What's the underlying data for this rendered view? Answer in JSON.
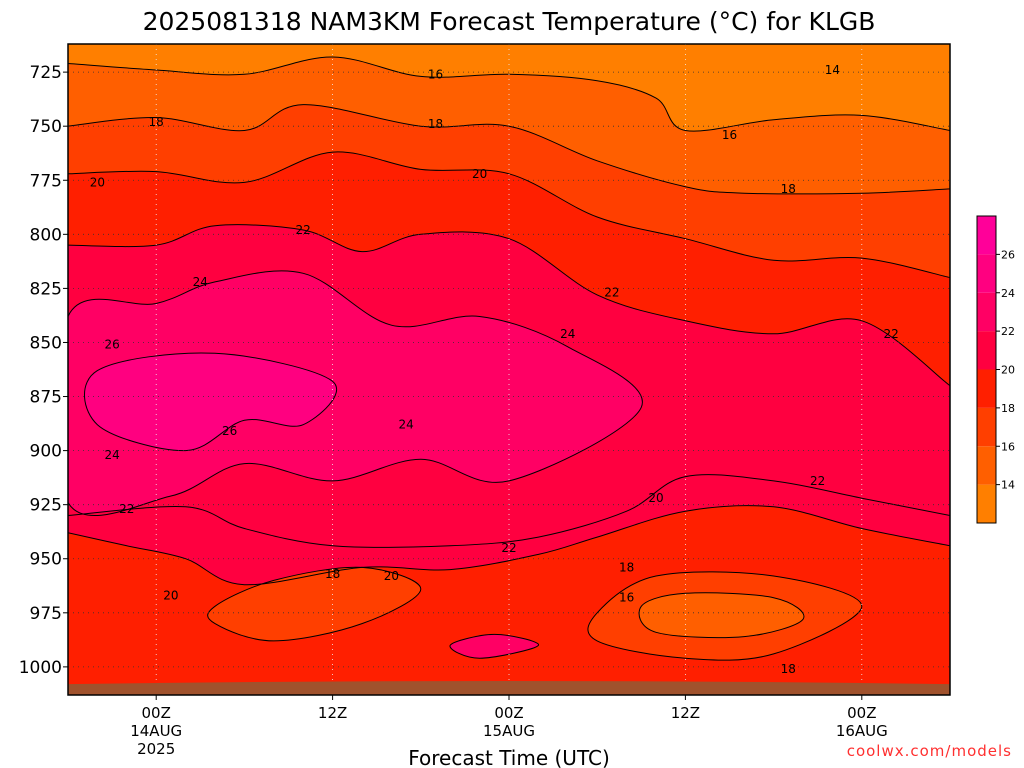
{
  "chart_data": {
    "type": "contour",
    "title": "2025081318 NAM3KM Forecast Temperature (°C) for KLGB",
    "xlabel": "Forecast Time (UTC)",
    "ylabel": "",
    "credit": "coolwx.com/models",
    "y_axis": {
      "unit": "hPa",
      "inverted": true,
      "range": [
        712,
        1013
      ],
      "ticks": [
        "725",
        "750",
        "775",
        "800",
        "825",
        "850",
        "875",
        "900",
        "925",
        "950",
        "975",
        "1000"
      ]
    },
    "x_axis": {
      "range_hours": [
        -6,
        54
      ],
      "ticks": [
        {
          "hour": 0,
          "lines": [
            "00Z",
            "14AUG",
            "2025"
          ]
        },
        {
          "hour": 12,
          "lines": [
            "12Z"
          ]
        },
        {
          "hour": 24,
          "lines": [
            "00Z",
            "15AUG"
          ]
        },
        {
          "hour": 36,
          "lines": [
            "12Z"
          ]
        },
        {
          "hour": 48,
          "lines": [
            "00Z",
            "16AUG"
          ]
        }
      ]
    },
    "grid": true,
    "colorbar": {
      "placement": "right",
      "labels": [
        "14",
        "16",
        "18",
        "20",
        "22",
        "24",
        "26"
      ],
      "colors": [
        "#ff7f00",
        "#ff5f00",
        "#ff3f00",
        "#ff1f00",
        "#ff0040",
        "#ff0064",
        "#ff0080",
        "#ff0099"
      ]
    },
    "fill_colors": {
      "t14": "#ff7f00",
      "t16": "#ff5f00",
      "t18": "#ff3f00",
      "t20": "#ff1f00",
      "t22": "#ff0040",
      "t24": "#ff0064",
      "t26": "#ff0080",
      "ground": "#a0522d"
    },
    "series": [
      {
        "level": 16,
        "points": [
          [
            -6,
            721
          ],
          [
            0,
            724
          ],
          [
            6,
            726
          ],
          [
            12,
            718
          ],
          [
            18,
            727
          ],
          [
            24,
            726
          ],
          [
            30,
            729
          ],
          [
            34,
            737
          ],
          [
            36,
            752
          ],
          [
            42,
            747
          ],
          [
            48,
            745
          ],
          [
            54,
            752
          ]
        ]
      },
      {
        "level": 18,
        "points": [
          [
            -6,
            750
          ],
          [
            0,
            746
          ],
          [
            6,
            752
          ],
          [
            10,
            740
          ],
          [
            18,
            750
          ],
          [
            24,
            750
          ],
          [
            30,
            766
          ],
          [
            36,
            778
          ],
          [
            40,
            781
          ],
          [
            48,
            781
          ],
          [
            54,
            779
          ]
        ]
      },
      {
        "level": 20,
        "points": [
          [
            -6,
            772
          ],
          [
            0,
            771
          ],
          [
            6,
            776
          ],
          [
            12,
            762
          ],
          [
            18,
            770
          ],
          [
            24,
            772
          ],
          [
            30,
            792
          ],
          [
            36,
            802
          ],
          [
            42,
            812
          ],
          [
            48,
            811
          ],
          [
            54,
            820
          ]
        ]
      },
      {
        "level": 22,
        "points": [
          [
            -6,
            805
          ],
          [
            0,
            805
          ],
          [
            4,
            796
          ],
          [
            10,
            798
          ],
          [
            14,
            808
          ],
          [
            18,
            800
          ],
          [
            24,
            802
          ],
          [
            30,
            828
          ],
          [
            36,
            840
          ],
          [
            42,
            846
          ],
          [
            48,
            840
          ],
          [
            54,
            870
          ]
        ]
      },
      {
        "level": 24,
        "points": [
          [
            -6,
            838
          ],
          [
            0,
            832
          ],
          [
            4,
            822
          ],
          [
            10,
            818
          ],
          [
            16,
            842
          ],
          [
            22,
            838
          ],
          [
            28,
            852
          ],
          [
            33,
            880
          ],
          [
            24,
            914
          ],
          [
            18,
            904
          ],
          [
            12,
            914
          ],
          [
            6,
            906
          ],
          [
            1,
            921
          ],
          [
            -6,
            924
          ]
        ]
      },
      {
        "level": 26,
        "points": [
          [
            -4,
            863
          ],
          [
            4,
            855
          ],
          [
            12,
            868
          ],
          [
            10,
            888
          ],
          [
            6,
            886
          ],
          [
            2,
            900
          ],
          [
            -4,
            888
          ]
        ]
      },
      {
        "level": 22,
        "points": [
          [
            -6,
            930
          ],
          [
            2,
            926
          ],
          [
            6,
            936
          ],
          [
            12,
            944
          ],
          [
            20,
            944
          ],
          [
            26,
            940
          ],
          [
            32,
            928
          ],
          [
            36,
            912
          ],
          [
            42,
            914
          ],
          [
            48,
            922
          ],
          [
            54,
            930
          ]
        ]
      },
      {
        "level": 20,
        "points": [
          [
            -6,
            938
          ],
          [
            -2,
            944
          ],
          [
            2,
            950
          ],
          [
            6,
            962
          ],
          [
            14,
            954
          ],
          [
            20,
            955
          ],
          [
            26,
            948
          ],
          [
            30,
            940
          ],
          [
            36,
            928
          ],
          [
            42,
            926
          ],
          [
            48,
            936
          ],
          [
            54,
            944
          ]
        ]
      },
      {
        "level": 18,
        "points": [
          [
            4,
            972
          ],
          [
            8,
            960
          ],
          [
            14,
            954
          ],
          [
            18,
            964
          ],
          [
            14,
            980
          ],
          [
            8,
            988
          ],
          [
            4,
            980
          ]
        ]
      },
      {
        "level": 18,
        "points": [
          [
            30,
            975
          ],
          [
            34,
            958
          ],
          [
            42,
            958
          ],
          [
            48,
            972
          ],
          [
            42,
            994
          ],
          [
            36,
            996
          ],
          [
            30,
            988
          ]
        ]
      },
      {
        "level": 16,
        "points": [
          [
            33,
            972
          ],
          [
            36,
            966
          ],
          [
            42,
            968
          ],
          [
            44,
            978
          ],
          [
            40,
            986
          ],
          [
            34,
            984
          ]
        ]
      },
      {
        "level": 22,
        "points": [
          [
            23,
            985
          ],
          [
            26,
            990
          ],
          [
            22,
            996
          ],
          [
            20,
            990
          ]
        ]
      }
    ],
    "annotations": [
      {
        "text": "14",
        "hour": 46,
        "hpa": 724
      },
      {
        "text": "16",
        "hour": 19,
        "hpa": 726
      },
      {
        "text": "16",
        "hour": 39,
        "hpa": 754
      },
      {
        "text": "18",
        "hour": 0,
        "hpa": 748
      },
      {
        "text": "18",
        "hour": 19,
        "hpa": 749
      },
      {
        "text": "18",
        "hour": 43,
        "hpa": 779
      },
      {
        "text": "20",
        "hour": -4,
        "hpa": 776
      },
      {
        "text": "20",
        "hour": 22,
        "hpa": 772
      },
      {
        "text": "22",
        "hour": 10,
        "hpa": 798
      },
      {
        "text": "22",
        "hour": 31,
        "hpa": 827
      },
      {
        "text": "22",
        "hour": 50,
        "hpa": 846
      },
      {
        "text": "24",
        "hour": 3,
        "hpa": 822
      },
      {
        "text": "24",
        "hour": 28,
        "hpa": 846
      },
      {
        "text": "24",
        "hour": 17,
        "hpa": 888
      },
      {
        "text": "24",
        "hour": -3,
        "hpa": 902
      },
      {
        "text": "26",
        "hour": -3,
        "hpa": 851
      },
      {
        "text": "26",
        "hour": 5,
        "hpa": 891
      },
      {
        "text": "22",
        "hour": -2,
        "hpa": 927
      },
      {
        "text": "22",
        "hour": 24,
        "hpa": 945
      },
      {
        "text": "22",
        "hour": 45,
        "hpa": 914
      },
      {
        "text": "20",
        "hour": 1,
        "hpa": 967
      },
      {
        "text": "20",
        "hour": 16,
        "hpa": 958
      },
      {
        "text": "20",
        "hour": 34,
        "hpa": 922
      },
      {
        "text": "18",
        "hour": 12,
        "hpa": 957
      },
      {
        "text": "18",
        "hour": 32,
        "hpa": 954
      },
      {
        "text": "18",
        "hour": 43,
        "hpa": 1001
      },
      {
        "text": "16",
        "hour": 32,
        "hpa": 968
      }
    ]
  }
}
